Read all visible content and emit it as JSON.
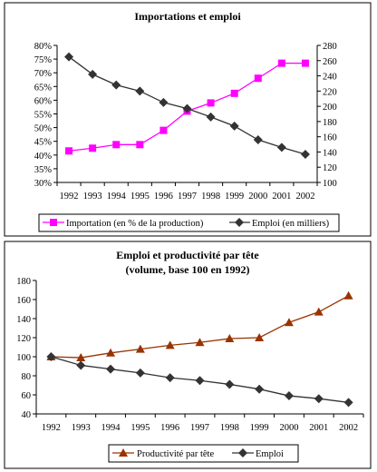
{
  "chart_data": [
    {
      "type": "line",
      "title": "Importations et emploi",
      "x": [
        "1992",
        "1993",
        "1994",
        "1995",
        "1996",
        "1997",
        "1998",
        "1999",
        "2000",
        "2001",
        "2002"
      ],
      "y_left": {
        "ylim": [
          30,
          80
        ],
        "ticks": [
          "30%",
          "35%",
          "40%",
          "45%",
          "50%",
          "55%",
          "60%",
          "65%",
          "70%",
          "75%",
          "80%"
        ]
      },
      "y_right": {
        "ylim": [
          100,
          280
        ],
        "ticks": [
          "100",
          "120",
          "140",
          "160",
          "180",
          "200",
          "220",
          "240",
          "260",
          "280"
        ]
      },
      "series": [
        {
          "name": "Importation (en % de la production)",
          "axis": "left",
          "color": "#FF00FF",
          "marker": "square",
          "values": [
            41.5,
            42.5,
            43.8,
            43.8,
            49,
            56,
            59,
            62.5,
            68,
            73.5,
            73.5
          ]
        },
        {
          "name": "Emploi (en milliers)",
          "axis": "right",
          "color": "#333333",
          "marker": "diamond",
          "values": [
            265,
            242,
            228,
            220,
            205,
            197,
            186,
            174,
            156,
            146,
            137
          ]
        }
      ],
      "legend": "bottom",
      "grid": false
    },
    {
      "type": "line",
      "title": "Emploi et productivité par tête",
      "subtitle": "(volume, base 100 en 1992)",
      "x": [
        "1992",
        "1993",
        "1994",
        "1995",
        "1996",
        "1997",
        "1998",
        "1999",
        "2000",
        "2001",
        "2002"
      ],
      "ylim": [
        40,
        180
      ],
      "yticks": [
        "40",
        "60",
        "80",
        "100",
        "120",
        "140",
        "160",
        "180"
      ],
      "series": [
        {
          "name": "Productivité par tête",
          "color": "#993300",
          "marker": "triangle",
          "values": [
            100,
            99,
            104,
            108,
            112,
            115,
            119,
            120,
            136,
            147,
            164
          ]
        },
        {
          "name": "Emploi",
          "color": "#333333",
          "marker": "diamond",
          "values": [
            100,
            91,
            87,
            83,
            78,
            75,
            71,
            66,
            59,
            56,
            52
          ]
        }
      ],
      "legend": "bottom",
      "grid": false
    }
  ]
}
